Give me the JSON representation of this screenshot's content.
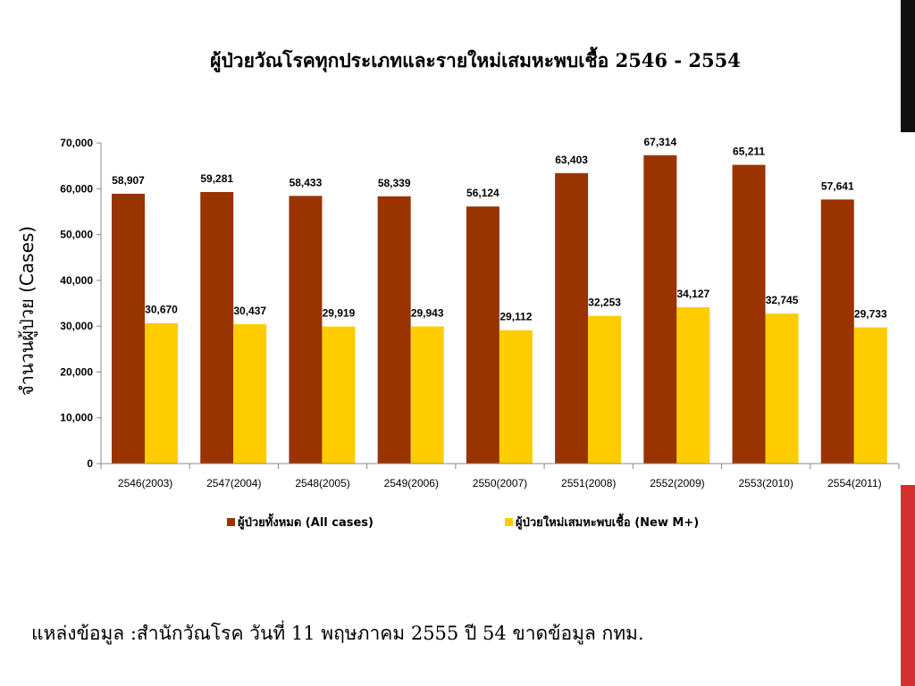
{
  "slide": {
    "title": "ผู้ป่วยวัณโรคทุกประเภทและรายใหม่เสมหะพบเชื้อ 2546 - 2554",
    "source_note": "แหล่งข้อมูล :สำนักวัณโรค วันที่ 11 พฤษภาคม 2555 ปี 54 ขาดข้อมูล กทม.",
    "accent_colors": {
      "black_bar": "#111111",
      "red_bar": "#d32f2f"
    }
  },
  "chart_data": {
    "type": "bar",
    "title": "",
    "xlabel": "",
    "ylabel": "จำนวนผู้ป่วย (Cases)",
    "ylim": [
      0,
      70000
    ],
    "yticks": [
      "0",
      "10,000",
      "20,000",
      "30,000",
      "40,000",
      "50,000",
      "60,000",
      "70,000"
    ],
    "ytick_values": [
      0,
      10000,
      20000,
      30000,
      40000,
      50000,
      60000,
      70000
    ],
    "grid": false,
    "legend_position": "bottom",
    "categories": [
      "2546(2003)",
      "2547(2004)",
      "2548(2005)",
      "2549(2006)",
      "2550(2007)",
      "2551(2008)",
      "2552(2009)",
      "2553(2010)",
      "2554(2011)"
    ],
    "series": [
      {
        "name": "ผู้ป่วยทั้งหมด (All cases)",
        "color": "#993300",
        "values": [
          58907,
          59281,
          58433,
          58339,
          56124,
          63403,
          67314,
          65211,
          57641
        ],
        "labels": [
          "58,907",
          "59,281",
          "58,433",
          "58,339",
          "56,124",
          "63,403",
          "67,314",
          "65,211",
          "57,641"
        ]
      },
      {
        "name": "ผู้ป่วยใหม่เสมหะพบเชื้อ (New M+)",
        "color": "#ffcc00",
        "values": [
          30670,
          30437,
          29919,
          29943,
          29112,
          32253,
          34127,
          32745,
          29733
        ],
        "labels": [
          "30,670",
          "30,437",
          "29,919",
          "29,943",
          "29,112",
          "32,253",
          "34,127",
          "32,745",
          "29,733"
        ]
      }
    ]
  }
}
